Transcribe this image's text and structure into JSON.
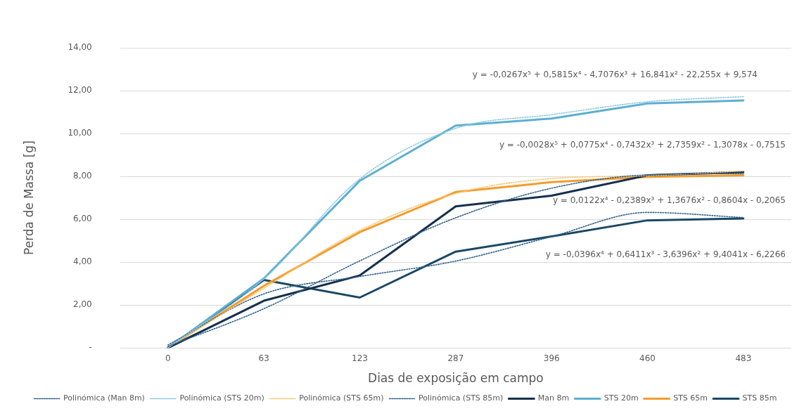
{
  "chart_data": {
    "type": "line",
    "xlabel": "Dias de exposição em campo",
    "ylabel": "Perda de Massa [g]",
    "categories": [
      "0",
      "63",
      "123",
      "287",
      "396",
      "460",
      "483"
    ],
    "series": [
      {
        "name": "Man 8m",
        "color": "#14304d",
        "values": [
          0,
          2.2,
          3.38,
          6.6,
          7.1,
          8.05,
          8.2
        ]
      },
      {
        "name": "STS 20m",
        "color": "#5eaed0",
        "values": [
          0,
          3.24,
          7.8,
          10.37,
          10.7,
          11.4,
          11.54
        ]
      },
      {
        "name": "STS 65m",
        "color": "#f59b2c",
        "values": [
          0,
          2.9,
          5.4,
          7.27,
          7.73,
          7.98,
          8.05
        ]
      },
      {
        "name": "STS 85m",
        "color": "#1a4866",
        "values": [
          0,
          3.17,
          2.35,
          4.49,
          5.2,
          5.95,
          6.04
        ]
      },
      {
        "name": "Polinómica (Man 8m)",
        "color": "#2f5f8c",
        "line_style": "dotted",
        "values": [
          0.07,
          1.83,
          4.06,
          6.07,
          7.45,
          8.07,
          8.13
        ]
      },
      {
        "name": "Polinómica (STS 20m)",
        "color": "#86c8e3",
        "line_style": "dotted",
        "values": [
          0.01,
          3.22,
          7.88,
          10.24,
          10.88,
          11.48,
          11.72
        ]
      },
      {
        "name": "Polinómica (STS 65m)",
        "color": "#f6c46e",
        "line_style": "dotted",
        "values": [
          0.01,
          2.78,
          5.48,
          7.2,
          7.9,
          8.03,
          8.25
        ]
      },
      {
        "name": "Polinómica (STS 85m)",
        "color": "#2f5f8c",
        "line_style": "dotted",
        "values": [
          0.14,
          2.52,
          3.33,
          4.05,
          5.19,
          6.32,
          6.08
        ]
      }
    ],
    "ylim": [
      0,
      14
    ],
    "yticks": [
      {
        "value": 0,
        "label": "-"
      },
      {
        "value": 2,
        "label": "2,00"
      },
      {
        "value": 4,
        "label": "4,00"
      },
      {
        "value": 6,
        "label": "6,00"
      },
      {
        "value": 8,
        "label": "8,00"
      },
      {
        "value": 10,
        "label": "10,00"
      },
      {
        "value": 12,
        "label": "12,00"
      },
      {
        "value": 14,
        "label": "14,00"
      }
    ],
    "grid": "y",
    "legend": "bottom",
    "marker": "none",
    "line_style": "solid",
    "annotations": [
      "y = -0,0267x⁵ + 0,5815x⁴ - 4,7076x³ + 16,841x² - 22,255x + 9,574",
      "y = -0,0028x⁵ + 0,0775x⁴ - 0,7432x³ + 2,7359x² - 1,3078x - 0,7515",
      "y = 0,0122x⁴ - 0,2389x³ + 1,3676x² - 0,8604x - 0,2065",
      "y = -0,0396x⁴ + 0,6411x³ - 3,6396x² + 9,4041x - 6,2266"
    ]
  }
}
